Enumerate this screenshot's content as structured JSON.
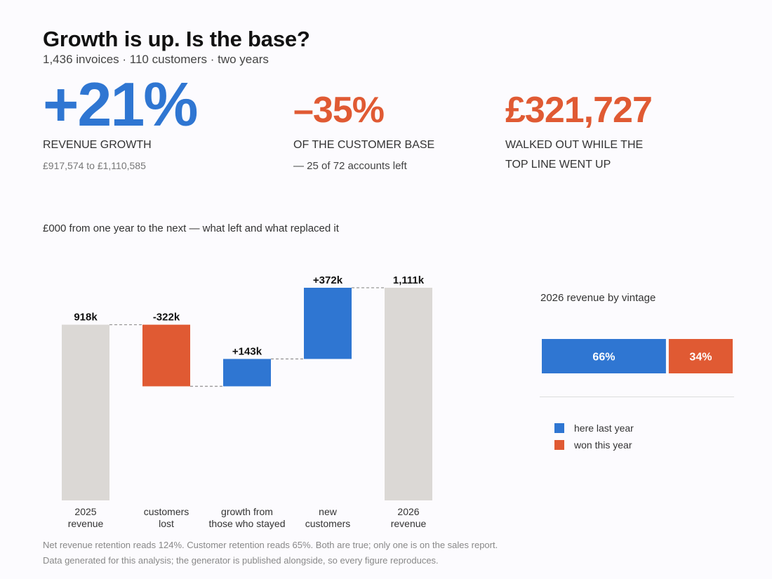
{
  "header": {
    "title": "Growth is up. Is the base?",
    "subtitle": "1,436 invoices  ·  110 customers  ·  two years"
  },
  "kpis": [
    {
      "value": "+21%",
      "label": "REVENUE GROWTH",
      "sub": "£917,574 to £1,110,585"
    },
    {
      "value": "–35%",
      "label": "OF THE CUSTOMER BASE",
      "sub": "— 25 of 72 accounts left"
    },
    {
      "value": "£321,727",
      "label": "WALKED OUT WHILE THE",
      "sub": "TOP LINE WENT UP"
    }
  ],
  "colors": {
    "blue": "#2f76d2",
    "orange": "#e05a33",
    "grey": "#dbd8d5",
    "connector": "#999999"
  },
  "chart_data": [
    {
      "type": "bar",
      "subtype": "waterfall",
      "title": "£000 from one year to the next — what left and what replaced it",
      "unit": "£000",
      "categories": [
        [
          "2025",
          "revenue"
        ],
        [
          "customers",
          "lost"
        ],
        [
          "growth from",
          "those who stayed"
        ],
        [
          "new",
          "customers"
        ],
        [
          "2026",
          "revenue"
        ]
      ],
      "values": [
        918,
        -322,
        143,
        372,
        1111
      ],
      "kinds": [
        "total",
        "delta",
        "delta",
        "delta",
        "total"
      ],
      "data_labels": [
        "918k",
        "-322k",
        "+143k",
        "+372k",
        "1,111k"
      ],
      "ylim": [
        0,
        1111
      ],
      "grid": false
    },
    {
      "type": "bar",
      "subtype": "stacked-100",
      "title": "2026 revenue by vintage",
      "series": [
        {
          "name": "here last year",
          "value": 66,
          "label": "66%"
        },
        {
          "name": "won this year",
          "value": 34,
          "label": "34%"
        }
      ]
    }
  ],
  "footnotes": [
    "Net revenue retention reads 124%. Customer retention reads 65%. Both are true; only one is on the sales report.",
    "Data generated for this analysis; the generator is published alongside, so every figure reproduces."
  ]
}
